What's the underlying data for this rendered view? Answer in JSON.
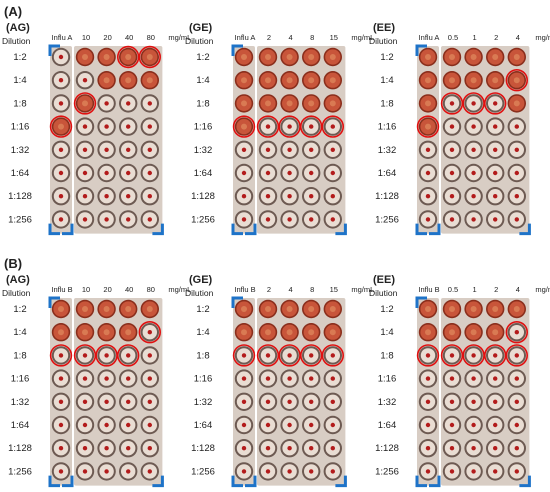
{
  "sections": [
    {
      "label": "(A)",
      "panels": [
        {
          "tag": "(AG)",
          "control": "Influ A",
          "concentrations": [
            "10",
            "20",
            "40",
            "80"
          ],
          "unit": "mg/mL",
          "agglutinated": [
            [
              0,
              1,
              1,
              1,
              1
            ],
            [
              0,
              0,
              1,
              1,
              1
            ],
            [
              0,
              1,
              0,
              0,
              0
            ],
            [
              1,
              0,
              0,
              0,
              0
            ],
            [
              0,
              0,
              0,
              0,
              0
            ],
            [
              0,
              0,
              0,
              0,
              0
            ],
            [
              0,
              0,
              0,
              0,
              0
            ],
            [
              0,
              0,
              0,
              0,
              0
            ]
          ],
          "circled": [
            [
              0,
              0,
              0,
              1,
              1
            ],
            [
              0,
              0,
              0,
              0,
              0
            ],
            [
              0,
              1,
              0,
              0,
              0
            ],
            [
              1,
              0,
              0,
              0,
              0
            ],
            [
              0,
              0,
              0,
              0,
              0
            ],
            [
              0,
              0,
              0,
              0,
              0
            ],
            [
              0,
              0,
              0,
              0,
              0
            ],
            [
              0,
              0,
              0,
              0,
              0
            ]
          ]
        },
        {
          "tag": "(GE)",
          "control": "Influ A",
          "concentrations": [
            "2",
            "4",
            "8",
            "15"
          ],
          "unit": "mg/mL",
          "agglutinated": [
            [
              1,
              1,
              1,
              1,
              1
            ],
            [
              1,
              1,
              1,
              1,
              1
            ],
            [
              1,
              1,
              1,
              1,
              1
            ],
            [
              1,
              0,
              0,
              0,
              0
            ],
            [
              0,
              0,
              0,
              0,
              0
            ],
            [
              0,
              0,
              0,
              0,
              0
            ],
            [
              0,
              0,
              0,
              0,
              0
            ],
            [
              0,
              0,
              0,
              0,
              0
            ]
          ],
          "circled": [
            [
              0,
              0,
              0,
              0,
              0
            ],
            [
              0,
              0,
              0,
              0,
              0
            ],
            [
              0,
              0,
              0,
              0,
              0
            ],
            [
              1,
              1,
              1,
              1,
              1
            ],
            [
              0,
              0,
              0,
              0,
              0
            ],
            [
              0,
              0,
              0,
              0,
              0
            ],
            [
              0,
              0,
              0,
              0,
              0
            ],
            [
              0,
              0,
              0,
              0,
              0
            ]
          ]
        },
        {
          "tag": "(EE)",
          "control": "Influ A",
          "concentrations": [
            "0.5",
            "1",
            "2",
            "4"
          ],
          "unit": "mg/mL",
          "agglutinated": [
            [
              1,
              1,
              1,
              1,
              1
            ],
            [
              1,
              1,
              1,
              1,
              1
            ],
            [
              1,
              0,
              0,
              0,
              1
            ],
            [
              1,
              0,
              0,
              0,
              0
            ],
            [
              0,
              0,
              0,
              0,
              0
            ],
            [
              0,
              0,
              0,
              0,
              0
            ],
            [
              0,
              0,
              0,
              0,
              0
            ],
            [
              0,
              0,
              0,
              0,
              0
            ]
          ],
          "circled": [
            [
              0,
              0,
              0,
              0,
              0
            ],
            [
              0,
              0,
              0,
              0,
              1
            ],
            [
              0,
              1,
              1,
              1,
              0
            ],
            [
              1,
              0,
              0,
              0,
              0
            ],
            [
              0,
              0,
              0,
              0,
              0
            ],
            [
              0,
              0,
              0,
              0,
              0
            ],
            [
              0,
              0,
              0,
              0,
              0
            ],
            [
              0,
              0,
              0,
              0,
              0
            ]
          ]
        }
      ]
    },
    {
      "label": "(B)",
      "panels": [
        {
          "tag": "(AG)",
          "control": "Influ B",
          "concentrations": [
            "10",
            "20",
            "40",
            "80"
          ],
          "unit": "mg/mL",
          "agglutinated": [
            [
              1,
              1,
              1,
              1,
              1
            ],
            [
              1,
              1,
              1,
              1,
              0
            ],
            [
              0,
              0,
              0,
              0,
              0
            ],
            [
              0,
              0,
              0,
              0,
              0
            ],
            [
              0,
              0,
              0,
              0,
              0
            ],
            [
              0,
              0,
              0,
              0,
              0
            ],
            [
              0,
              0,
              0,
              0,
              0
            ],
            [
              0,
              0,
              0,
              0,
              0
            ]
          ],
          "circled": [
            [
              0,
              0,
              0,
              0,
              0
            ],
            [
              0,
              0,
              0,
              0,
              1
            ],
            [
              1,
              1,
              1,
              1,
              0
            ],
            [
              0,
              0,
              0,
              0,
              0
            ],
            [
              0,
              0,
              0,
              0,
              0
            ],
            [
              0,
              0,
              0,
              0,
              0
            ],
            [
              0,
              0,
              0,
              0,
              0
            ],
            [
              0,
              0,
              0,
              0,
              0
            ]
          ]
        },
        {
          "tag": "(GE)",
          "control": "Influ B",
          "concentrations": [
            "2",
            "4",
            "8",
            "15"
          ],
          "unit": "mg/mL",
          "agglutinated": [
            [
              1,
              1,
              1,
              1,
              1
            ],
            [
              1,
              1,
              1,
              1,
              1
            ],
            [
              0,
              0,
              0,
              0,
              0
            ],
            [
              0,
              0,
              0,
              0,
              0
            ],
            [
              0,
              0,
              0,
              0,
              0
            ],
            [
              0,
              0,
              0,
              0,
              0
            ],
            [
              0,
              0,
              0,
              0,
              0
            ],
            [
              0,
              0,
              0,
              0,
              0
            ]
          ],
          "circled": [
            [
              0,
              0,
              0,
              0,
              0
            ],
            [
              0,
              0,
              0,
              0,
              0
            ],
            [
              1,
              1,
              1,
              1,
              1
            ],
            [
              0,
              0,
              0,
              0,
              0
            ],
            [
              0,
              0,
              0,
              0,
              0
            ],
            [
              0,
              0,
              0,
              0,
              0
            ],
            [
              0,
              0,
              0,
              0,
              0
            ],
            [
              0,
              0,
              0,
              0,
              0
            ]
          ]
        },
        {
          "tag": "(EE)",
          "control": "Influ B",
          "concentrations": [
            "0.5",
            "1",
            "2",
            "4"
          ],
          "unit": "mg/mL",
          "agglutinated": [
            [
              1,
              1,
              1,
              1,
              1
            ],
            [
              1,
              1,
              1,
              1,
              0
            ],
            [
              0,
              0,
              0,
              0,
              0
            ],
            [
              0,
              0,
              0,
              0,
              0
            ],
            [
              0,
              0,
              0,
              0,
              0
            ],
            [
              0,
              0,
              0,
              0,
              0
            ],
            [
              0,
              0,
              0,
              0,
              0
            ],
            [
              0,
              0,
              0,
              0,
              0
            ]
          ],
          "circled": [
            [
              0,
              0,
              0,
              0,
              0
            ],
            [
              0,
              0,
              0,
              0,
              1
            ],
            [
              1,
              1,
              1,
              1,
              1
            ],
            [
              0,
              0,
              0,
              0,
              0
            ],
            [
              0,
              0,
              0,
              0,
              0
            ],
            [
              0,
              0,
              0,
              0,
              0
            ],
            [
              0,
              0,
              0,
              0,
              0
            ],
            [
              0,
              0,
              0,
              0,
              0
            ]
          ]
        }
      ]
    }
  ],
  "dilution_header": "Dilution",
  "dilutions": [
    "1:2",
    "1:4",
    "1:8",
    "1:16",
    "1:32",
    "1:64",
    "1:128",
    "1:256"
  ],
  "colors": {
    "plate_bg": "#d8cdc4",
    "agglutinated_fill": "#c8553a",
    "agglutinated_edge": "#8a2e1c",
    "button_ring": "#6d5a52",
    "button_fill": "#e9ddd3",
    "button_dot": "#b31b1b",
    "circle_marker": "#e01010",
    "corner_marker": "#1e73c8"
  }
}
